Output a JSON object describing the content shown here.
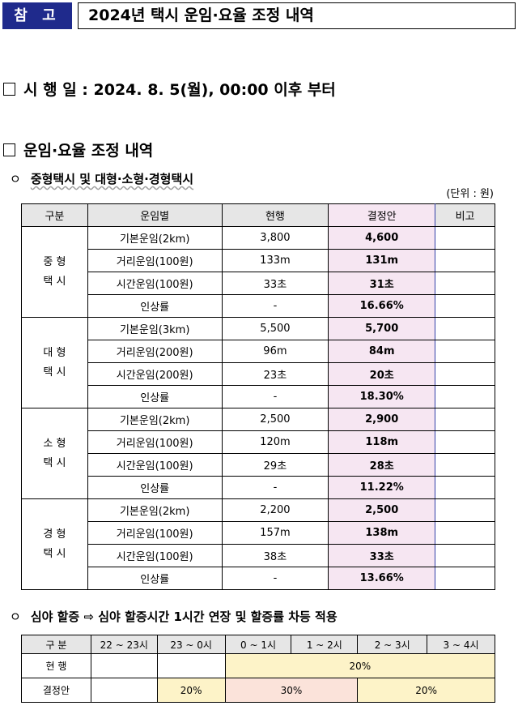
{
  "header": {
    "tag": "참 고",
    "title": "2024년 택시 운임·요율 조정 내역"
  },
  "section1": {
    "text": "시 행 일 : 2024. 8. 5(월), 00:00 이후 부터"
  },
  "section2": {
    "text": "운임·요율 조정 내역"
  },
  "sub1": {
    "bullet": "ㅇ",
    "text": "중형택시 및 대형·소형·경형택시"
  },
  "unit": "(단위 : 원)",
  "fare_table": {
    "headers": [
      "구분",
      "운임별",
      "현행",
      "결정안",
      "비고"
    ],
    "groups": [
      {
        "category": [
          "중 형",
          "택 시"
        ],
        "rows": [
          {
            "item": "기본운임(2km)",
            "current": "3,800",
            "decision": "4,600"
          },
          {
            "item": "거리운임(100원)",
            "current": "133m",
            "decision": "131m"
          },
          {
            "item": "시간운임(100원)",
            "current": "33초",
            "decision": "31초"
          },
          {
            "item": "인상률",
            "current": "-",
            "decision": "16.66%"
          }
        ]
      },
      {
        "category": [
          "대 형",
          "택 시"
        ],
        "rows": [
          {
            "item": "기본운임(3km)",
            "current": "5,500",
            "decision": "5,700"
          },
          {
            "item": "거리운임(200원)",
            "current": "96m",
            "decision": "84m"
          },
          {
            "item": "시간운임(200원)",
            "current": "23초",
            "decision": "20초"
          },
          {
            "item": "인상률",
            "current": "-",
            "decision": "18.30%"
          }
        ]
      },
      {
        "category": [
          "소 형",
          "택 시"
        ],
        "rows": [
          {
            "item": "기본운임(2km)",
            "current": "2,500",
            "decision": "2,900"
          },
          {
            "item": "거리운임(100원)",
            "current": "120m",
            "decision": "118m"
          },
          {
            "item": "시간운임(100원)",
            "current": "29초",
            "decision": "28초"
          },
          {
            "item": "인상률",
            "current": "-",
            "decision": "11.22%"
          }
        ]
      },
      {
        "category": [
          "경 형",
          "택 시"
        ],
        "rows": [
          {
            "item": "기본운임(2km)",
            "current": "2,200",
            "decision": "2,500"
          },
          {
            "item": "거리운임(100원)",
            "current": "157m",
            "decision": "138m"
          },
          {
            "item": "시간운임(100원)",
            "current": "38초",
            "decision": "33초"
          },
          {
            "item": "인상률",
            "current": "-",
            "decision": "13.66%"
          }
        ]
      }
    ]
  },
  "sub2": {
    "bullet": "ㅇ",
    "text": "심야 할증 ⇨ 심야 할증시간 1시간 연장 및 할증률 차등 적용"
  },
  "night_table": {
    "headers": [
      "구 분",
      "22 ~ 23시",
      "23 ~ 0시",
      "0 ~ 1시",
      "1 ~ 2시",
      "2 ~ 3시",
      "3 ~ 4시"
    ],
    "current": {
      "label": "현 행",
      "rate": "20%"
    },
    "decision": {
      "label": "결정안",
      "r1": "20%",
      "r2": "30%",
      "r3": "20%"
    }
  },
  "colors": {
    "tag_bg": "#1f2a8c",
    "decision_bg": "#f6e6f2",
    "yellow": "#fdf3c8",
    "pink": "#fbe3da"
  }
}
